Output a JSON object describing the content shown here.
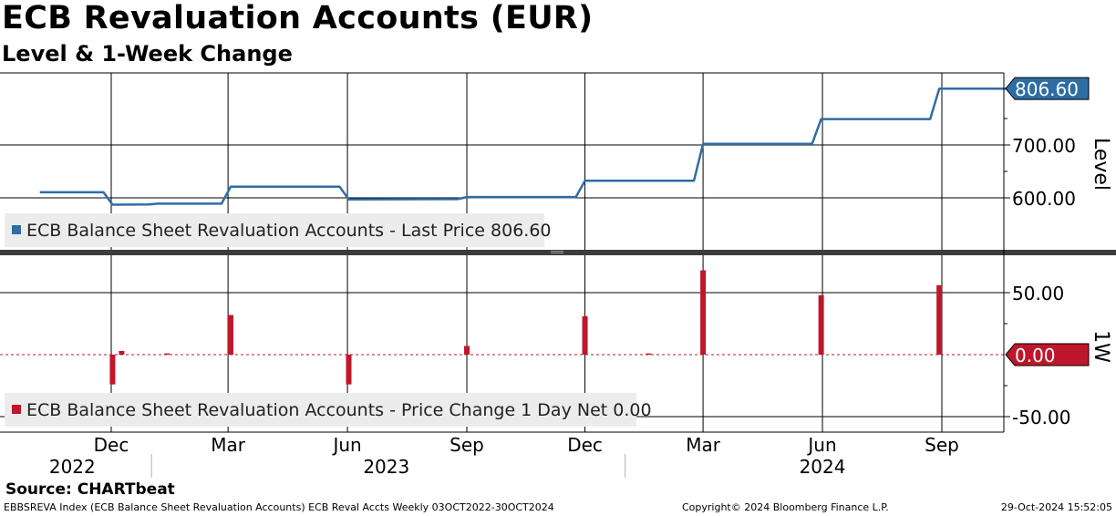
{
  "title": "ECB Revaluation Accounts (EUR)",
  "subtitle": "Level & 1-Week Change",
  "source": "Source: CHARTbeat",
  "footer": {
    "left": "EBBSREVA Index (ECB Balance Sheet Revaluation Accounts) ECB Reval Accts  Weekly 03OCT2022-30OCT2024",
    "middle": "Copyright© 2024 Bloomberg Finance L.P.",
    "right": "29-Oct-2024 15:52:05"
  },
  "colors": {
    "level_line": "#2e6da4",
    "change_bar": "#c0162b",
    "legend_bg": "#ececec"
  },
  "chart_data": [
    {
      "type": "line",
      "name": "level-panel",
      "axis_title": "Level",
      "ylim": [
        570,
        830
      ],
      "y_ticks": [
        600,
        700
      ],
      "y_tick_labels": [
        "600.00",
        "700.00"
      ],
      "last_value_label": "806.60",
      "legend": "ECB Balance Sheet Revaluation Accounts - Last Price 806.60",
      "series": [
        {
          "name": "ECB Balance Sheet Revaluation Accounts",
          "x": [
            "2022-10-07",
            "2022-11-25",
            "2022-12-02",
            "2022-12-30",
            "2023-01-06",
            "2023-02-24",
            "2023-03-03",
            "2023-05-26",
            "2023-06-02",
            "2023-08-25",
            "2023-09-01",
            "2023-11-24",
            "2023-12-01",
            "2024-02-23",
            "2024-03-01",
            "2024-05-24",
            "2024-05-31",
            "2024-08-23",
            "2024-08-30",
            "2024-10-25"
          ],
          "values": [
            610.5,
            610.5,
            587,
            587.5,
            589,
            589,
            621,
            621,
            597,
            597.5,
            601.5,
            601.5,
            632.5,
            632.5,
            702,
            702,
            749,
            749,
            806.6,
            806.6
          ]
        }
      ]
    },
    {
      "type": "bar",
      "name": "change-panel",
      "axis_title": "1W",
      "ylim": [
        -58,
        73
      ],
      "y_ticks": [
        50,
        -50
      ],
      "y_tick_labels": [
        "50.00",
        "-50.00"
      ],
      "last_value_label": "0.00",
      "legend": "ECB Balance Sheet Revaluation Accounts - Price Change 1 Day Net 0.00",
      "series": [
        {
          "name": "ECB Balance Sheet Revaluation Accounts",
          "x": [
            "2022-12-02",
            "2022-12-09",
            "2023-01-13",
            "2023-03-03",
            "2023-06-02",
            "2023-09-01",
            "2023-12-01",
            "2024-01-19",
            "2024-03-01",
            "2024-05-31",
            "2024-08-30"
          ],
          "values": [
            -24,
            3,
            1,
            32,
            -24,
            7,
            31,
            1,
            68,
            48,
            56
          ]
        }
      ]
    }
  ],
  "x_axis": {
    "months": [
      {
        "label": "Dec",
        "date": "2022-12-01"
      },
      {
        "label": "Mar",
        "date": "2023-03-01"
      },
      {
        "label": "Jun",
        "date": "2023-06-01"
      },
      {
        "label": "Sep",
        "date": "2023-09-01"
      },
      {
        "label": "Dec",
        "date": "2023-12-01"
      },
      {
        "label": "Mar",
        "date": "2024-03-01"
      },
      {
        "label": "Jun",
        "date": "2024-06-01"
      },
      {
        "label": "Sep",
        "date": "2024-09-01"
      }
    ],
    "years": [
      {
        "label": "2022",
        "date": "2022-11-01"
      },
      {
        "label": "2023",
        "date": "2023-07-01"
      },
      {
        "label": "2024",
        "date": "2024-06-01"
      }
    ],
    "year_separators": [
      "2023-01-01",
      "2024-01-01"
    ]
  }
}
